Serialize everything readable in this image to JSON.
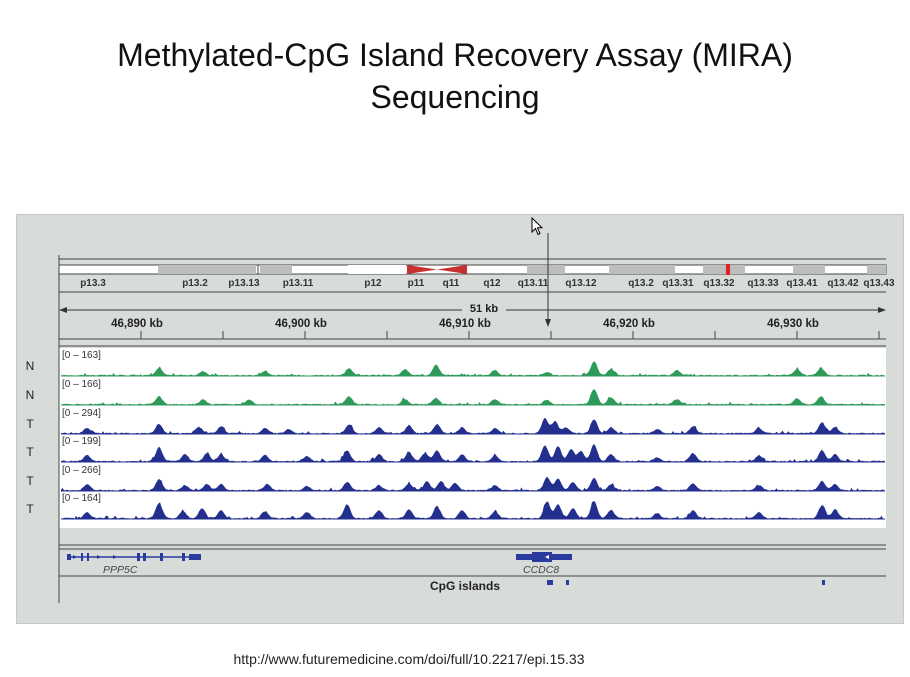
{
  "slide": {
    "title_line1": "Methylated-CpG Island Recovery Assay (MIRA)",
    "title_line2": "Sequencing",
    "source_url": "http://www.futuremedicine.com/doi/full/10.2217/epi.15.33"
  },
  "figure": {
    "ideogram_bands": [
      "p13.3",
      "p13.2",
      "p13.13",
      "p13.11",
      "p12",
      "p11",
      "q11",
      "q12",
      "q13.11",
      "q13.12",
      "q13.2",
      "q13.31",
      "q13.32",
      "q13.33",
      "q13.41",
      "q13.42",
      "q13.43"
    ],
    "span_label": "51 kb",
    "coordinate_labels": [
      "46,890 kb",
      "46,900 kb",
      "46,910 kb",
      "46,920 kb",
      "46,930 kb"
    ],
    "tracks": [
      {
        "sample": "N",
        "range": "[0 – 163]",
        "color": "#2e9a5a"
      },
      {
        "sample": "N",
        "range": "[0 – 166]",
        "color": "#2e9a5a"
      },
      {
        "sample": "T",
        "range": "[0 – 294]",
        "color": "#232f8e"
      },
      {
        "sample": "T",
        "range": "[0 – 199]",
        "color": "#232f8e"
      },
      {
        "sample": "T",
        "range": "[0 – 266]",
        "color": "#232f8e"
      },
      {
        "sample": "T",
        "range": "[0 – 164]",
        "color": "#232f8e"
      }
    ],
    "genes": [
      "PPP5C",
      "CCDC8"
    ],
    "cpg_label": "CpG islands",
    "colors": {
      "normal": "#2e9a5a",
      "tumor": "#232f8e",
      "centromere": "#c83030",
      "gene": "#2a3a9e"
    }
  }
}
